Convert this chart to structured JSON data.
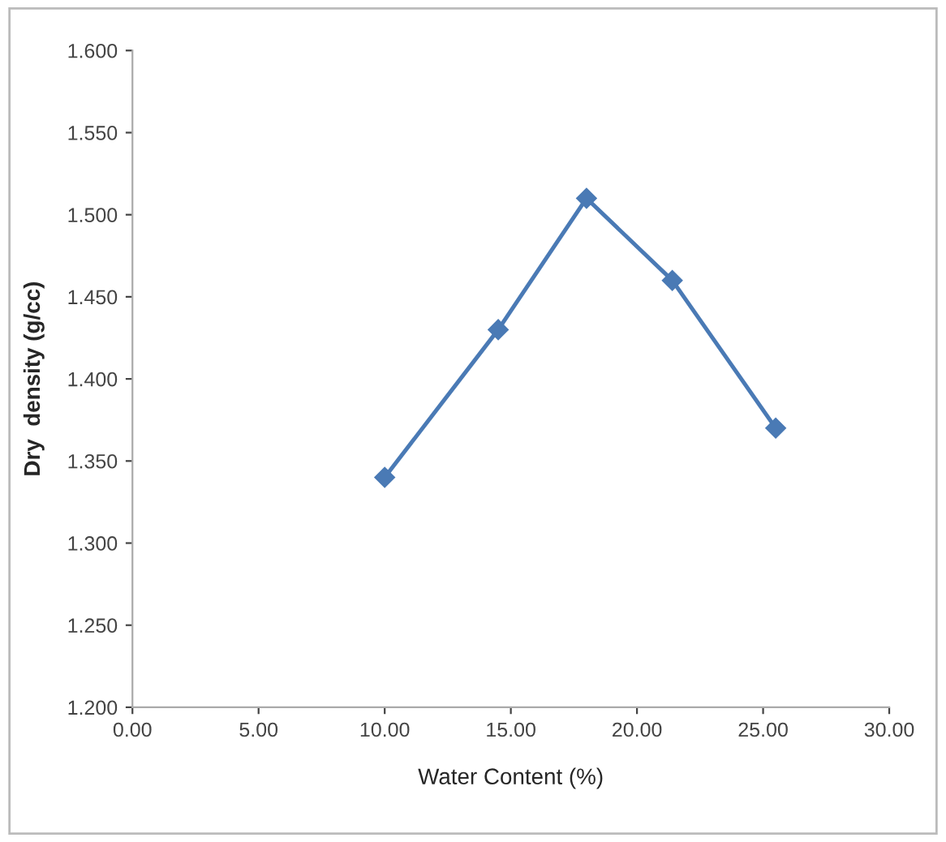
{
  "chart_data": {
    "type": "line",
    "xlabel": "Water Content (%)",
    "ylabel": "Dry  density (g/cc)",
    "x": [
      10.0,
      14.5,
      18.0,
      21.4,
      25.5
    ],
    "series": [
      {
        "color": "#4a7ab5",
        "values": [
          1.34,
          1.43,
          1.51,
          1.46,
          1.37
        ]
      }
    ],
    "xlim": [
      0,
      30
    ],
    "ylim": [
      1.2,
      1.6
    ],
    "xticks": [
      {
        "value": 0,
        "label": "0.00"
      },
      {
        "value": 5,
        "label": "5.00"
      },
      {
        "value": 10,
        "label": "10.00"
      },
      {
        "value": 15,
        "label": "15.00"
      },
      {
        "value": 20,
        "label": "20.00"
      },
      {
        "value": 25,
        "label": "25.00"
      },
      {
        "value": 30,
        "label": "30.00"
      }
    ],
    "yticks": [
      {
        "value": 1.2,
        "label": "1.200"
      },
      {
        "value": 1.25,
        "label": "1.250"
      },
      {
        "value": 1.3,
        "label": "1.300"
      },
      {
        "value": 1.35,
        "label": "1.350"
      },
      {
        "value": 1.4,
        "label": "1.400"
      },
      {
        "value": 1.45,
        "label": "1.450"
      },
      {
        "value": 1.5,
        "label": "1.500"
      },
      {
        "value": 1.55,
        "label": "1.550"
      },
      {
        "value": 1.6,
        "label": "1.600"
      }
    ],
    "marker": "diamond",
    "line_style": "solid",
    "grid": false
  }
}
